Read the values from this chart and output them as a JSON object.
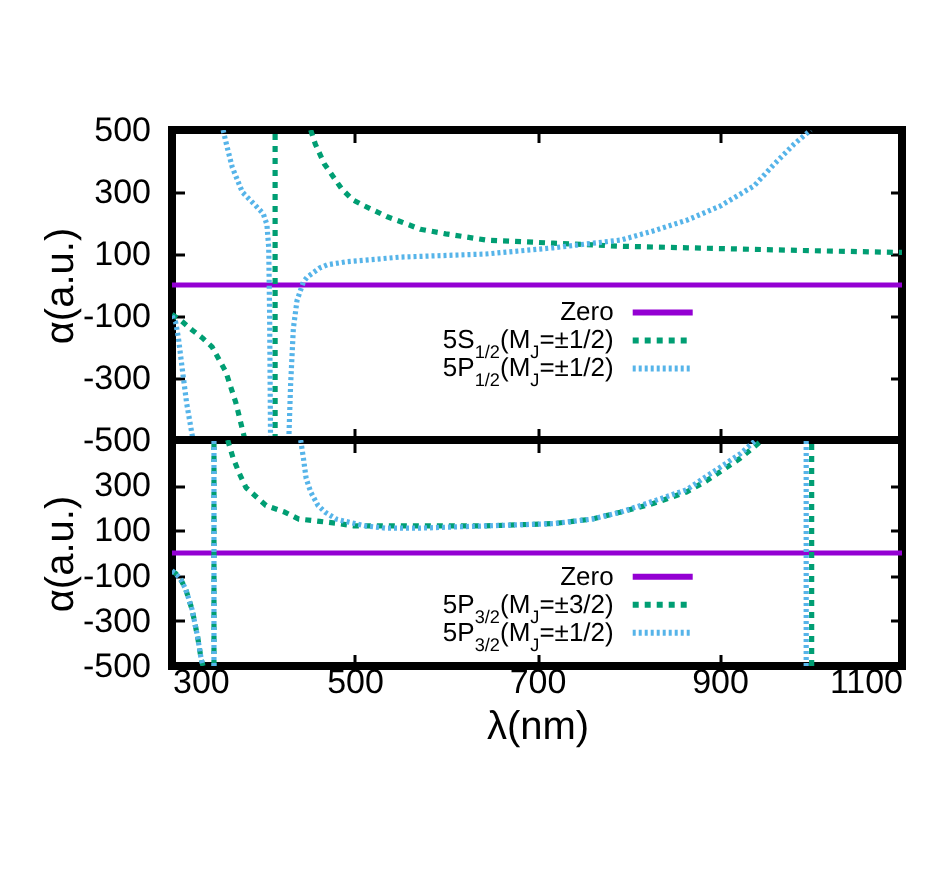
{
  "chart_data": [
    {
      "type": "line",
      "ylabel": "α(a.u.)",
      "xlim": [
        300,
        1100
      ],
      "xticks": [
        300,
        500,
        700,
        900,
        1100
      ],
      "ylim": [
        -500,
        500
      ],
      "yticks": [
        -500,
        -300,
        -100,
        100,
        300,
        500
      ],
      "tick_labels": "y",
      "legend": "bottom",
      "series": [
        {
          "name": "Zero",
          "color": "#9400d3",
          "line_style": "solid",
          "x": [
            300,
            1100
          ],
          "values": [
            0,
            0
          ]
        },
        {
          "name": "5S$_{1/2}$(M$_{J}$=±1/2)",
          "color": "#009e73",
          "line_style": "dashed",
          "x": [
            300,
            310,
            322,
            333,
            344,
            359,
            370,
            380,
            400,
            413,
            413,
            440,
            452,
            457,
            467,
            486,
            498,
            511,
            536,
            550,
            572,
            600,
            644,
            718,
            792,
            865,
            938,
            1011,
            1100
          ],
          "values": [
            -95,
            -115,
            -145,
            -170,
            -200,
            -280,
            -380,
            -500,
            null,
            -500,
            500,
            null,
            500,
            455,
            390,
            310,
            275,
            255,
            220,
            205,
            180,
            165,
            145,
            135,
            125,
            120,
            115,
            110,
            105
          ]
        },
        {
          "name": "5P$_{1/2}$(M$_{J}$=±1/2)",
          "color": "#56b4e9",
          "line_style": "dotted",
          "x": [
            300,
            304,
            307,
            311,
            316,
            323,
            340,
            356,
            360,
            366,
            377,
            392,
            400,
            404,
            406,
            407,
            408,
            418,
            428,
            430,
            433,
            437,
            444,
            448,
            462,
            470,
            491,
            550,
            644,
            718,
            762,
            792,
            828,
            865,
            901,
            938,
            960,
            982,
            1000
          ],
          "values": [
            -100,
            -120,
            -170,
            -265,
            -380,
            -500,
            null,
            500,
            450,
            380,
            300,
            255,
            230,
            195,
            120,
            -100,
            -500,
            null,
            -500,
            -320,
            -140,
            -50,
            10,
            25,
            55,
            65,
            75,
            90,
            100,
            120,
            135,
            145,
            175,
            210,
            255,
            320,
            390,
            455,
            500
          ]
        }
      ]
    },
    {
      "type": "line",
      "xlabel": "λ(nm)",
      "ylabel": "α(a.u.)",
      "xlim": [
        300,
        1100
      ],
      "xticks": [
        300,
        500,
        700,
        900,
        1100
      ],
      "ylim": [
        -500,
        500
      ],
      "yticks": [
        -500,
        -300,
        -100,
        100,
        300,
        {
          "value": 500,
          "label": null
        }
      ],
      "legend": "bottom",
      "series": [
        {
          "name": "Zero",
          "color": "#9400d3",
          "line_style": "solid",
          "x": [
            300,
            1100
          ],
          "values": [
            0,
            0
          ]
        },
        {
          "name": "5P$_{3/2}$(M$_{J}$=±3/2)",
          "color": "#009e73",
          "line_style": "dashed",
          "x": [
            300,
            304,
            310,
            315,
            322,
            328,
            332,
            334,
            340,
            346,
            346,
            355,
            361,
            367,
            374,
            381,
            392,
            403,
            424,
            439,
            462,
            483,
            499,
            571,
            644,
            718,
            760,
            791,
            828,
            864,
            886,
            901,
            923,
            935,
            947,
            970,
            1001,
            1001
          ],
          "values": [
            -80,
            -90,
            -120,
            -160,
            -250,
            -370,
            -470,
            -500,
            null,
            -500,
            500,
            null,
            500,
            420,
            350,
            290,
            250,
            210,
            180,
            150,
            140,
            130,
            120,
            120,
            120,
            130,
            150,
            180,
            220,
            270,
            320,
            360,
            420,
            460,
            500,
            null,
            -500,
            500
          ]
        },
        {
          "name": "5P$_{3/2}$(M$_{J}$=±1/2)",
          "color": "#56b4e9",
          "line_style": "dotted",
          "x": [
            300,
            304,
            310,
            315,
            322,
            328,
            332,
            334,
            340,
            346,
            346,
            400,
            441,
            444,
            447,
            452,
            460,
            468,
            480,
            490,
            512,
            534,
            571,
            644,
            718,
            760,
            791,
            828,
            864,
            886,
            901,
            923,
            940,
            970,
            995,
            995
          ],
          "values": [
            -80,
            -90,
            -120,
            -160,
            -250,
            -370,
            -470,
            -500,
            null,
            -500,
            500,
            null,
            500,
            420,
            330,
            270,
            210,
            180,
            150,
            140,
            120,
            110,
            110,
            120,
            130,
            150,
            180,
            230,
            280,
            340,
            380,
            440,
            500,
            null,
            -500,
            500
          ]
        }
      ]
    }
  ]
}
